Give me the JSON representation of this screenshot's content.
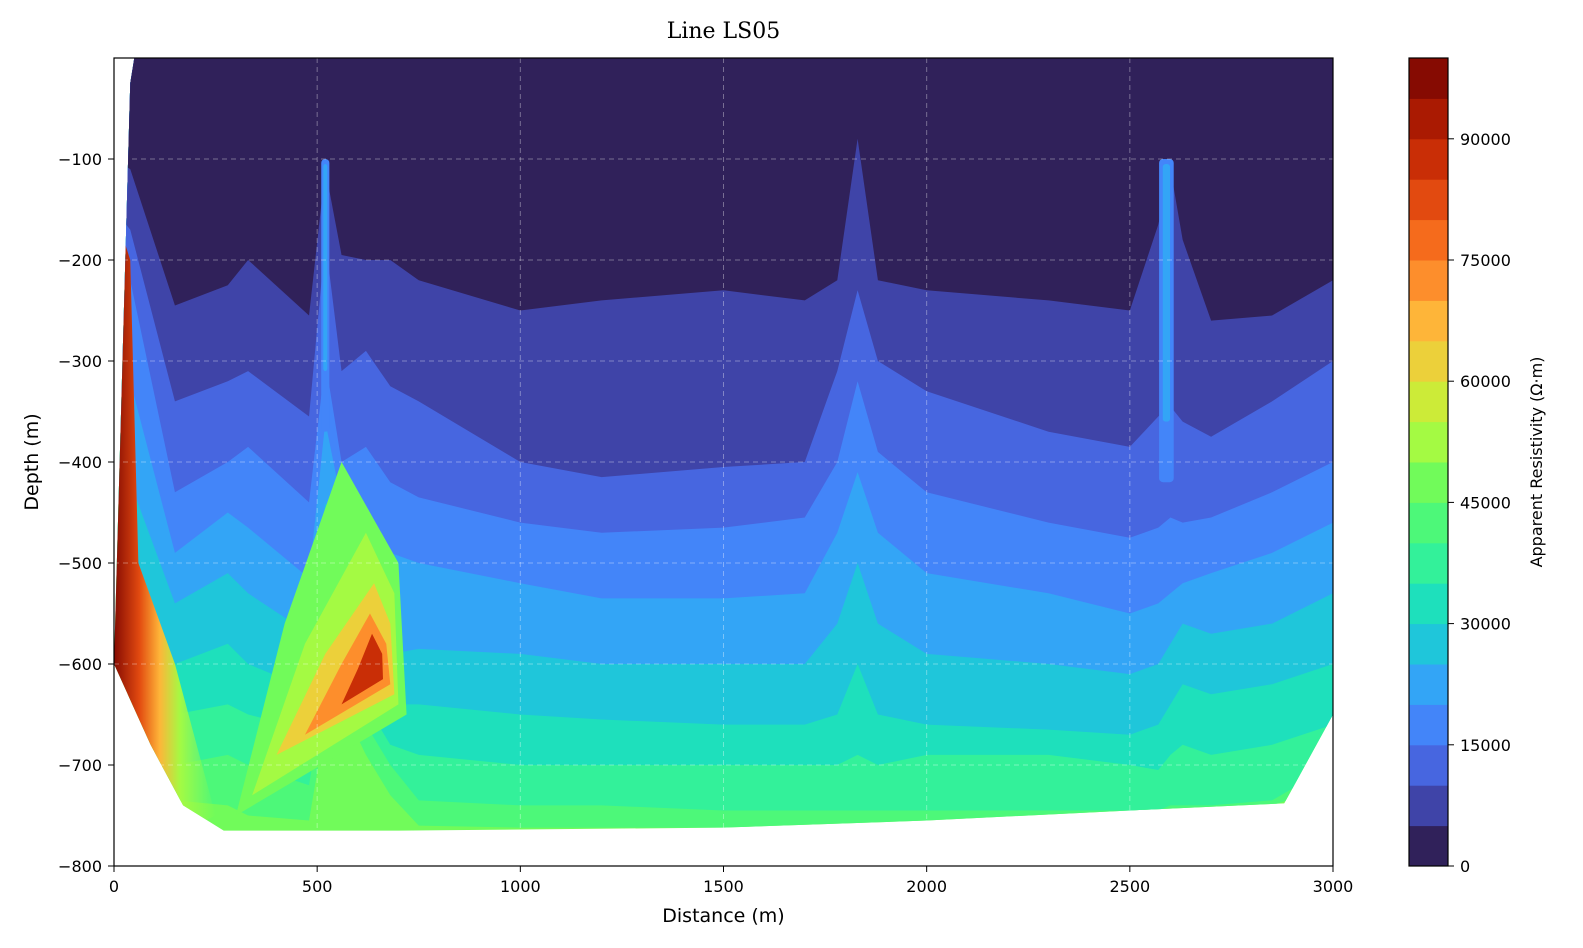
{
  "chart_data": {
    "type": "contour",
    "title": "Line LS05",
    "xlabel": "Distance (m)",
    "ylabel": "Depth (m)",
    "xlim": [
      0,
      3000
    ],
    "ylim": [
      -800,
      0
    ],
    "x_ticks": [
      0,
      500,
      1000,
      1500,
      2000,
      2500,
      3000
    ],
    "x_tick_labels": [
      "0",
      "500",
      "1000",
      "1500",
      "2000",
      "2500",
      "3000"
    ],
    "y_ticks": [
      -100,
      -200,
      -300,
      -400,
      -500,
      -600,
      -700,
      -800
    ],
    "y_tick_labels": [
      "−100",
      "−200",
      "−300",
      "−400",
      "−500",
      "−600",
      "−700",
      "−800"
    ],
    "grid": true,
    "colorbar": {
      "label": "Apparent Resistivity (Ω·m)",
      "range": [
        0,
        100000
      ],
      "ticks": [
        0,
        15000,
        30000,
        45000,
        60000,
        75000,
        90000
      ],
      "tick_labels": [
        "0",
        "15000",
        "30000",
        "45000",
        "60000",
        "75000",
        "90000"
      ],
      "levels": [
        {
          "from": 0,
          "to": 5000,
          "color": "#30215a"
        },
        {
          "from": 5000,
          "to": 10000,
          "color": "#3f44a8"
        },
        {
          "from": 10000,
          "to": 15000,
          "color": "#4766e0"
        },
        {
          "from": 15000,
          "to": 20000,
          "color": "#4385f9"
        },
        {
          "from": 20000,
          "to": 25000,
          "color": "#33a5f6"
        },
        {
          "from": 25000,
          "to": 30000,
          "color": "#1fc6da"
        },
        {
          "from": 30000,
          "to": 35000,
          "color": "#1ee0bc"
        },
        {
          "from": 35000,
          "to": 40000,
          "color": "#33f19a"
        },
        {
          "from": 40000,
          "to": 45000,
          "color": "#4df879"
        },
        {
          "from": 45000,
          "to": 50000,
          "color": "#71fb5a"
        },
        {
          "from": 50000,
          "to": 55000,
          "color": "#a4fa43"
        },
        {
          "from": 55000,
          "to": 60000,
          "color": "#cceb38"
        },
        {
          "from": 60000,
          "to": 65000,
          "color": "#ecd03a"
        },
        {
          "from": 65000,
          "to": 70000,
          "color": "#feb539"
        },
        {
          "from": 70000,
          "to": 75000,
          "color": "#fd8e2c"
        },
        {
          "from": 75000,
          "to": 80000,
          "color": "#f56b1c"
        },
        {
          "from": 80000,
          "to": 85000,
          "color": "#e24a10"
        },
        {
          "from": 85000,
          "to": 90000,
          "color": "#c92e06"
        },
        {
          "from": 90000,
          "to": 95000,
          "color": "#aa1a02"
        },
        {
          "from": 95000,
          "to": 100000,
          "color": "#860b02"
        }
      ]
    },
    "bottom_boundary": [
      [
        0,
        -600
      ],
      [
        90,
        -680
      ],
      [
        170,
        -740
      ],
      [
        270,
        -765
      ],
      [
        700,
        -765
      ],
      [
        1500,
        -762
      ],
      [
        2000,
        -755
      ],
      [
        2500,
        -745
      ],
      [
        2880,
        -738
      ],
      [
        3000,
        -650
      ]
    ],
    "top_boundary": [
      [
        40,
        -25
      ],
      [
        50,
        0
      ],
      [
        3000,
        0
      ],
      [
        3000,
        -10
      ]
    ],
    "profile_x": [
      0,
      40,
      150,
      280,
      330,
      480,
      520,
      560,
      620,
      680,
      750,
      1000,
      1200,
      1500,
      1700,
      1780,
      1830,
      1880,
      2000,
      2300,
      2500,
      2570,
      2600,
      2630,
      2700,
      2850,
      3000
    ],
    "contour_depths": {
      "5000": [
        -100,
        -110,
        -245,
        -225,
        -200,
        -255,
        -110,
        -195,
        -200,
        -200,
        -220,
        -250,
        -240,
        -230,
        -240,
        -220,
        -80,
        -220,
        -230,
        -240,
        -250,
        -165,
        -110,
        -180,
        -260,
        -255,
        -220
      ],
      "10000": [
        -150,
        -170,
        -340,
        -320,
        -310,
        -355,
        -180,
        -310,
        -290,
        -325,
        -340,
        -400,
        -415,
        -405,
        -400,
        -310,
        -230,
        -300,
        -330,
        -370,
        -385,
        -355,
        -345,
        -360,
        -375,
        -340,
        -300
      ],
      "15000": [
        -200,
        -220,
        -430,
        -400,
        -385,
        -440,
        -300,
        -400,
        -385,
        -420,
        -435,
        -460,
        -470,
        -465,
        -455,
        -400,
        -320,
        -390,
        -430,
        -460,
        -475,
        -465,
        -455,
        -460,
        -455,
        -430,
        -400
      ],
      "20000": [
        -280,
        -320,
        -490,
        -450,
        -465,
        -515,
        -360,
        -440,
        -465,
        -490,
        -500,
        -520,
        -535,
        -535,
        -530,
        -470,
        -410,
        -470,
        -510,
        -530,
        -550,
        -540,
        -530,
        -520,
        -510,
        -490,
        -460
      ],
      "25000": [
        -350,
        -420,
        -540,
        -510,
        -530,
        -570,
        -440,
        -480,
        -560,
        -590,
        -585,
        -590,
        -600,
        -600,
        -600,
        -560,
        -500,
        -560,
        -590,
        -600,
        -610,
        -600,
        -580,
        -560,
        -570,
        -560,
        -530
      ],
      "30000": [
        -420,
        -500,
        -600,
        -580,
        -600,
        -625,
        -510,
        -520,
        -620,
        -640,
        -640,
        -650,
        -655,
        -660,
        -660,
        -650,
        -600,
        -650,
        -660,
        -665,
        -670,
        -660,
        -640,
        -620,
        -630,
        -620,
        -600
      ],
      "35000": [
        -480,
        -560,
        -650,
        -640,
        -650,
        -665,
        -570,
        -560,
        -640,
        -680,
        -690,
        -700,
        -700,
        -700,
        -700,
        -700,
        -690,
        -700,
        -690,
        -690,
        -700,
        -705,
        -690,
        -680,
        -690,
        -680,
        -660
      ],
      "40000": [
        -520,
        -610,
        -700,
        -690,
        -700,
        -720,
        -620,
        -600,
        -660,
        -700,
        -735,
        -740,
        -740,
        -745,
        -745,
        -745,
        -745,
        -745,
        -745,
        -745,
        -745,
        -745,
        -740,
        -740,
        -740,
        -735,
        -700
      ],
      "45000": [
        -560,
        -640,
        -735,
        -740,
        -750,
        -755,
        -660,
        -640,
        -690,
        -730,
        -760,
        -762,
        -762,
        -762,
        -760,
        -760,
        -758,
        -758,
        -757,
        -755,
        -752,
        -750,
        -748,
        -746,
        -744,
        -740,
        -720
      ]
    },
    "anomalies": [
      {
        "x": 620,
        "y": -590,
        "peak": 90000
      },
      {
        "x": 20,
        "y": -580,
        "peak": 95000
      },
      {
        "x": 2590,
        "y": -130,
        "peak": 22000
      },
      {
        "x": 520,
        "y": -130,
        "peak": 22000
      }
    ]
  }
}
